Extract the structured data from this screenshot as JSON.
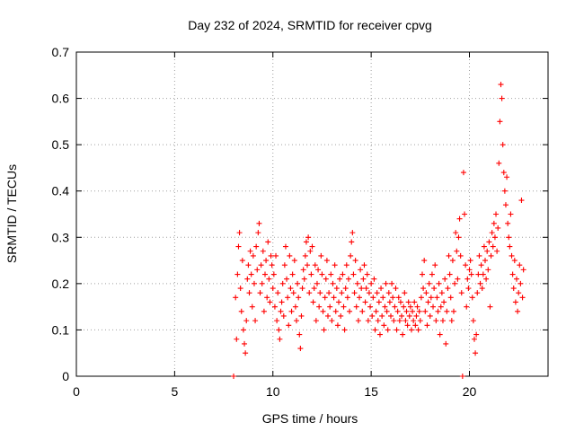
{
  "colors": {
    "series": "#ff0000",
    "frame": "#000000",
    "grid": "#a0a0a0"
  },
  "chart_data": {
    "type": "scatter",
    "title": "Day 232 of 2024, SRMTID for receiver cpvg",
    "xlabel": "GPS time / hours",
    "ylabel": "SRMTID / TECUs",
    "xlim": [
      0,
      24
    ],
    "ylim": [
      0,
      0.7
    ],
    "xticks": [
      0,
      5,
      10,
      15,
      20
    ],
    "yticks": [
      0,
      0.1,
      0.2,
      0.3,
      0.4,
      0.5,
      0.6,
      0.7
    ],
    "xtick_labels": [
      "0",
      "5",
      "10",
      "15",
      "20"
    ],
    "ytick_labels": [
      "0",
      "0.1",
      "0.2",
      "0.3",
      "0.4",
      "0.5",
      "0.6",
      "0.7"
    ],
    "grid": true,
    "legend": "none",
    "series": [
      {
        "name": "SRMTID",
        "marker": "+",
        "color": "#ff0000",
        "points": [
          [
            8.0,
            0.0
          ],
          [
            8.1,
            0.17
          ],
          [
            8.15,
            0.08
          ],
          [
            8.2,
            0.22
          ],
          [
            8.25,
            0.28
          ],
          [
            8.3,
            0.31
          ],
          [
            8.35,
            0.19
          ],
          [
            8.4,
            0.14
          ],
          [
            8.45,
            0.25
          ],
          [
            8.5,
            0.1
          ],
          [
            8.55,
            0.07
          ],
          [
            8.6,
            0.05
          ],
          [
            8.65,
            0.12
          ],
          [
            8.7,
            0.21
          ],
          [
            8.75,
            0.24
          ],
          [
            8.8,
            0.18
          ],
          [
            8.85,
            0.27
          ],
          [
            8.9,
            0.22
          ],
          [
            8.95,
            0.15
          ],
          [
            9.0,
            0.26
          ],
          [
            9.05,
            0.2
          ],
          [
            9.1,
            0.12
          ],
          [
            9.15,
            0.28
          ],
          [
            9.2,
            0.23
          ],
          [
            9.25,
            0.31
          ],
          [
            9.3,
            0.33
          ],
          [
            9.35,
            0.18
          ],
          [
            9.4,
            0.24
          ],
          [
            9.45,
            0.2
          ],
          [
            9.5,
            0.27
          ],
          [
            9.55,
            0.14
          ],
          [
            9.6,
            0.22
          ],
          [
            9.65,
            0.25
          ],
          [
            9.7,
            0.17
          ],
          [
            9.75,
            0.29
          ],
          [
            9.8,
            0.21
          ],
          [
            9.85,
            0.16
          ],
          [
            9.9,
            0.26
          ],
          [
            9.95,
            0.24
          ],
          [
            10.0,
            0.19
          ],
          [
            10.05,
            0.22
          ],
          [
            10.1,
            0.15
          ],
          [
            10.15,
            0.26
          ],
          [
            10.2,
            0.12
          ],
          [
            10.25,
            0.18
          ],
          [
            10.3,
            0.1
          ],
          [
            10.35,
            0.08
          ],
          [
            10.4,
            0.14
          ],
          [
            10.45,
            0.16
          ],
          [
            10.5,
            0.2
          ],
          [
            10.55,
            0.13
          ],
          [
            10.6,
            0.24
          ],
          [
            10.65,
            0.28
          ],
          [
            10.7,
            0.21
          ],
          [
            10.75,
            0.17
          ],
          [
            10.8,
            0.11
          ],
          [
            10.85,
            0.26
          ],
          [
            10.9,
            0.19
          ],
          [
            10.95,
            0.14
          ],
          [
            11.0,
            0.22
          ],
          [
            11.05,
            0.18
          ],
          [
            11.1,
            0.25
          ],
          [
            11.15,
            0.15
          ],
          [
            11.2,
            0.12
          ],
          [
            11.25,
            0.2
          ],
          [
            11.3,
            0.17
          ],
          [
            11.35,
            0.09
          ],
          [
            11.4,
            0.06
          ],
          [
            11.45,
            0.13
          ],
          [
            11.5,
            0.19
          ],
          [
            11.55,
            0.23
          ],
          [
            11.6,
            0.21
          ],
          [
            11.65,
            0.26
          ],
          [
            11.7,
            0.29
          ],
          [
            11.75,
            0.24
          ],
          [
            11.8,
            0.3
          ],
          [
            11.85,
            0.18
          ],
          [
            11.9,
            0.27
          ],
          [
            11.95,
            0.22
          ],
          [
            12.0,
            0.28
          ],
          [
            12.05,
            0.16
          ],
          [
            12.1,
            0.19
          ],
          [
            12.15,
            0.24
          ],
          [
            12.2,
            0.12
          ],
          [
            12.25,
            0.2
          ],
          [
            12.3,
            0.23
          ],
          [
            12.35,
            0.15
          ],
          [
            12.4,
            0.18
          ],
          [
            12.45,
            0.26
          ],
          [
            12.5,
            0.22
          ],
          [
            12.55,
            0.14
          ],
          [
            12.6,
            0.1
          ],
          [
            12.65,
            0.17
          ],
          [
            12.7,
            0.21
          ],
          [
            12.75,
            0.25
          ],
          [
            12.8,
            0.13
          ],
          [
            12.85,
            0.18
          ],
          [
            12.9,
            0.15
          ],
          [
            12.95,
            0.22
          ],
          [
            13.0,
            0.12
          ],
          [
            13.05,
            0.2
          ],
          [
            13.1,
            0.17
          ],
          [
            13.15,
            0.24
          ],
          [
            13.2,
            0.14
          ],
          [
            13.25,
            0.19
          ],
          [
            13.3,
            0.11
          ],
          [
            13.35,
            0.16
          ],
          [
            13.4,
            0.21
          ],
          [
            13.45,
            0.13
          ],
          [
            13.5,
            0.18
          ],
          [
            13.55,
            0.22
          ],
          [
            13.6,
            0.15
          ],
          [
            13.65,
            0.1
          ],
          [
            13.7,
            0.19
          ],
          [
            13.75,
            0.24
          ],
          [
            13.8,
            0.17
          ],
          [
            13.85,
            0.21
          ],
          [
            13.9,
            0.14
          ],
          [
            13.95,
            0.26
          ],
          [
            14.0,
            0.29
          ],
          [
            14.05,
            0.31
          ],
          [
            14.1,
            0.22
          ],
          [
            14.15,
            0.18
          ],
          [
            14.2,
            0.25
          ],
          [
            14.25,
            0.15
          ],
          [
            14.3,
            0.2
          ],
          [
            14.35,
            0.12
          ],
          [
            14.4,
            0.17
          ],
          [
            14.45,
            0.23
          ],
          [
            14.5,
            0.19
          ],
          [
            14.55,
            0.14
          ],
          [
            14.6,
            0.21
          ],
          [
            14.65,
            0.24
          ],
          [
            14.7,
            0.16
          ],
          [
            14.75,
            0.19
          ],
          [
            14.8,
            0.22
          ],
          [
            14.85,
            0.12
          ],
          [
            14.9,
            0.18
          ],
          [
            14.95,
            0.15
          ],
          [
            15.0,
            0.2
          ],
          [
            15.05,
            0.13
          ],
          [
            15.1,
            0.17
          ],
          [
            15.15,
            0.21
          ],
          [
            15.2,
            0.1
          ],
          [
            15.25,
            0.14
          ],
          [
            15.3,
            0.18
          ],
          [
            15.35,
            0.12
          ],
          [
            15.4,
            0.16
          ],
          [
            15.45,
            0.09
          ],
          [
            15.5,
            0.19
          ],
          [
            15.55,
            0.13
          ],
          [
            15.6,
            0.17
          ],
          [
            15.65,
            0.11
          ],
          [
            15.7,
            0.15
          ],
          [
            15.75,
            0.2
          ],
          [
            15.8,
            0.14
          ],
          [
            15.85,
            0.1
          ],
          [
            15.9,
            0.18
          ],
          [
            15.95,
            0.16
          ],
          [
            16.0,
            0.13
          ],
          [
            16.05,
            0.2
          ],
          [
            16.1,
            0.17
          ],
          [
            16.15,
            0.12
          ],
          [
            16.2,
            0.15
          ],
          [
            16.25,
            0.19
          ],
          [
            16.3,
            0.1
          ],
          [
            16.35,
            0.14
          ],
          [
            16.4,
            0.17
          ],
          [
            16.45,
            0.12
          ],
          [
            16.5,
            0.16
          ],
          [
            16.55,
            0.13
          ],
          [
            16.6,
            0.09
          ],
          [
            16.65,
            0.15
          ],
          [
            16.7,
            0.18
          ],
          [
            16.75,
            0.12
          ],
          [
            16.8,
            0.14
          ],
          [
            16.85,
            0.11
          ],
          [
            16.9,
            0.16
          ],
          [
            16.95,
            0.13
          ],
          [
            17.0,
            0.15
          ],
          [
            17.05,
            0.1
          ],
          [
            17.1,
            0.14
          ],
          [
            17.15,
            0.12
          ],
          [
            17.2,
            0.16
          ],
          [
            17.25,
            0.11
          ],
          [
            17.3,
            0.13
          ],
          [
            17.35,
            0.15
          ],
          [
            17.4,
            0.1
          ],
          [
            17.45,
            0.14
          ],
          [
            17.5,
            0.12
          ],
          [
            17.55,
            0.17
          ],
          [
            17.6,
            0.22
          ],
          [
            17.65,
            0.19
          ],
          [
            17.7,
            0.25
          ],
          [
            17.75,
            0.14
          ],
          [
            17.8,
            0.18
          ],
          [
            17.85,
            0.11
          ],
          [
            17.9,
            0.16
          ],
          [
            17.95,
            0.2
          ],
          [
            18.0,
            0.13
          ],
          [
            18.05,
            0.17
          ],
          [
            18.1,
            0.22
          ],
          [
            18.15,
            0.15
          ],
          [
            18.2,
            0.19
          ],
          [
            18.25,
            0.24
          ],
          [
            18.3,
            0.12
          ],
          [
            18.35,
            0.17
          ],
          [
            18.4,
            0.14
          ],
          [
            18.45,
            0.2
          ],
          [
            18.5,
            0.09
          ],
          [
            18.55,
            0.15
          ],
          [
            18.6,
            0.18
          ],
          [
            18.65,
            0.12
          ],
          [
            18.7,
            0.16
          ],
          [
            18.75,
            0.21
          ],
          [
            18.8,
            0.07
          ],
          [
            18.85,
            0.14
          ],
          [
            18.9,
            0.19
          ],
          [
            18.95,
            0.26
          ],
          [
            19.0,
            0.22
          ],
          [
            19.05,
            0.17
          ],
          [
            19.1,
            0.12
          ],
          [
            19.15,
            0.25
          ],
          [
            19.2,
            0.14
          ],
          [
            19.25,
            0.2
          ],
          [
            19.3,
            0.31
          ],
          [
            19.35,
            0.27
          ],
          [
            19.4,
            0.21
          ],
          [
            19.45,
            0.3
          ],
          [
            19.5,
            0.34
          ],
          [
            19.55,
            0.26
          ],
          [
            19.6,
            0.18
          ],
          [
            19.65,
            0.0
          ],
          [
            19.7,
            0.44
          ],
          [
            19.75,
            0.35
          ],
          [
            19.8,
            0.24
          ],
          [
            19.85,
            0.15
          ],
          [
            19.9,
            0.21
          ],
          [
            19.95,
            0.19
          ],
          [
            20.0,
            0.23
          ],
          [
            20.05,
            0.25
          ],
          [
            20.1,
            0.22
          ],
          [
            20.15,
            0.17
          ],
          [
            20.2,
            0.12
          ],
          [
            20.25,
            0.08
          ],
          [
            20.3,
            0.05
          ],
          [
            20.35,
            0.09
          ],
          [
            20.4,
            0.18
          ],
          [
            20.45,
            0.22
          ],
          [
            20.5,
            0.26
          ],
          [
            20.55,
            0.2
          ],
          [
            20.6,
            0.24
          ],
          [
            20.65,
            0.19
          ],
          [
            20.7,
            0.22
          ],
          [
            20.75,
            0.28
          ],
          [
            20.8,
            0.25
          ],
          [
            20.85,
            0.21
          ],
          [
            20.9,
            0.27
          ],
          [
            20.95,
            0.23
          ],
          [
            21.0,
            0.29
          ],
          [
            21.05,
            0.15
          ],
          [
            21.1,
            0.26
          ],
          [
            21.15,
            0.31
          ],
          [
            21.2,
            0.28
          ],
          [
            21.25,
            0.33
          ],
          [
            21.3,
            0.3
          ],
          [
            21.35,
            0.35
          ],
          [
            21.4,
            0.27
          ],
          [
            21.45,
            0.32
          ],
          [
            21.5,
            0.46
          ],
          [
            21.55,
            0.55
          ],
          [
            21.6,
            0.63
          ],
          [
            21.65,
            0.6
          ],
          [
            21.7,
            0.5
          ],
          [
            21.75,
            0.44
          ],
          [
            21.8,
            0.4
          ],
          [
            21.85,
            0.37
          ],
          [
            21.9,
            0.43
          ],
          [
            21.95,
            0.33
          ],
          [
            22.0,
            0.3
          ],
          [
            22.05,
            0.28
          ],
          [
            22.1,
            0.35
          ],
          [
            22.15,
            0.26
          ],
          [
            22.2,
            0.22
          ],
          [
            22.25,
            0.19
          ],
          [
            22.3,
            0.25
          ],
          [
            22.35,
            0.16
          ],
          [
            22.4,
            0.21
          ],
          [
            22.45,
            0.14
          ],
          [
            22.5,
            0.18
          ],
          [
            22.55,
            0.24
          ],
          [
            22.6,
            0.2
          ],
          [
            22.65,
            0.38
          ],
          [
            22.7,
            0.17
          ],
          [
            22.75,
            0.23
          ]
        ]
      }
    ]
  }
}
